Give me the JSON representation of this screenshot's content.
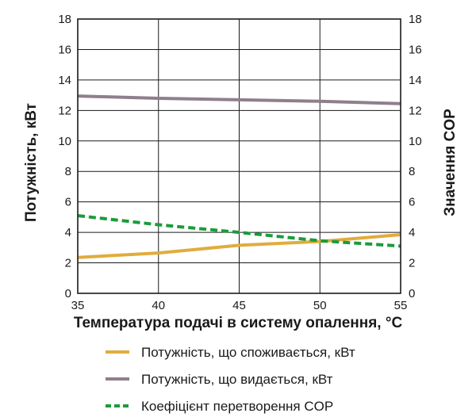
{
  "chart_data": {
    "type": "line",
    "xlabel": "Температура подачі в систему опалення, °C",
    "ylabel": "Потужність, кВт",
    "y2label": "Значення COP",
    "x": [
      35,
      40,
      45,
      50,
      55
    ],
    "x_ticks": [
      "35",
      "40",
      "45",
      "50",
      "55"
    ],
    "y_ticks": [
      "0",
      "2",
      "4",
      "6",
      "8",
      "10",
      "12",
      "14",
      "16",
      "18"
    ],
    "y2_ticks": [
      "0",
      "2",
      "4",
      "6",
      "8",
      "10",
      "12",
      "14",
      "16",
      "18"
    ],
    "xlim": [
      35,
      55
    ],
    "ylim": [
      0,
      18
    ],
    "y2lim": [
      0,
      18
    ],
    "grid": true,
    "legend_position": "bottom",
    "series": [
      {
        "name": "Потужність, що споживається, кВт",
        "color": "#e0ac3c",
        "style": "solid",
        "axis": "left",
        "values": [
          2.35,
          2.65,
          3.15,
          3.4,
          3.85
        ]
      },
      {
        "name": "Потужність, що видається, кВт",
        "color": "#8f7f8b",
        "style": "solid",
        "axis": "left",
        "values": [
          12.95,
          12.8,
          12.7,
          12.6,
          12.45
        ]
      },
      {
        "name": "Коефіцієнт перетворення COP",
        "color": "#1a9c3a",
        "style": "dashed",
        "axis": "right",
        "values": [
          5.1,
          4.5,
          4.0,
          3.45,
          3.1
        ]
      }
    ]
  }
}
